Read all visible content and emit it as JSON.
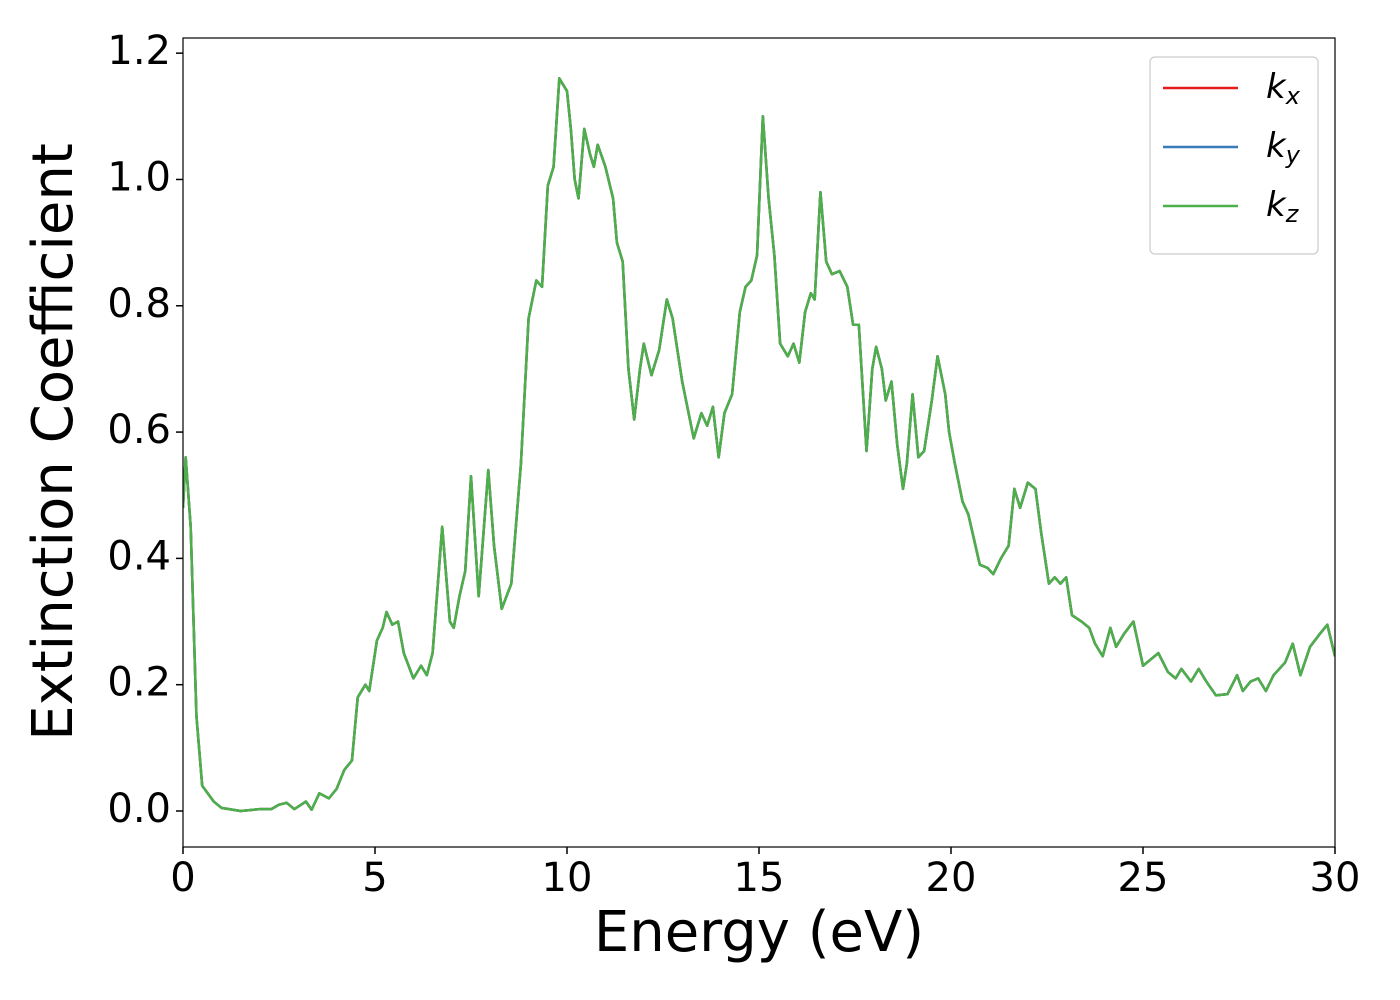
{
  "chart_data": {
    "type": "line",
    "xlabel": "Energy (eV)",
    "ylabel": "Extinction Coefficient",
    "xlim": [
      0,
      30
    ],
    "ylim": [
      -0.057,
      1.224
    ],
    "xticks": [
      0,
      5,
      10,
      15,
      20,
      25,
      30
    ],
    "yticks": [
      {
        "value": 0,
        "label": "0.0"
      },
      0.2,
      0.4,
      0.6,
      0.8,
      {
        "value": 1,
        "label": "1.0"
      },
      1.2
    ],
    "grid": false,
    "legend": "upper right",
    "x": [
      0,
      0.07,
      0.2,
      0.35,
      0.5,
      0.8,
      1,
      1.5,
      2,
      2.3,
      2.5,
      2.7,
      2.9,
      3.2,
      3.35,
      3.55,
      3.8,
      4,
      4.2,
      4.4,
      4.55,
      4.75,
      4.85,
      5.05,
      5.2,
      5.3,
      5.45,
      5.6,
      5.75,
      6,
      6.2,
      6.35,
      6.5,
      6.75,
      6.95,
      7.05,
      7.2,
      7.35,
      7.5,
      7.7,
      7.95,
      8.1,
      8.3,
      8.55,
      8.8,
      9,
      9.2,
      9.35,
      9.5,
      9.65,
      9.8,
      10,
      10.1,
      10.2,
      10.3,
      10.45,
      10.6,
      10.7,
      10.8,
      11,
      11.2,
      11.3,
      11.45,
      11.6,
      11.75,
      11.9,
      12,
      12.2,
      12.4,
      12.6,
      12.75,
      13,
      13.2,
      13.3,
      13.5,
      13.65,
      13.8,
      13.95,
      14.1,
      14.3,
      14.5,
      14.65,
      14.8,
      14.95,
      15.1,
      15.25,
      15.4,
      15.55,
      15.75,
      15.9,
      16.05,
      16.2,
      16.35,
      16.45,
      16.6,
      16.75,
      16.9,
      17.1,
      17.3,
      17.45,
      17.6,
      17.8,
      17.95,
      18.05,
      18.2,
      18.3,
      18.45,
      18.6,
      18.75,
      18.85,
      19,
      19.15,
      19.3,
      19.5,
      19.65,
      19.85,
      19.95,
      20.1,
      20.3,
      20.45,
      20.6,
      20.75,
      20.95,
      21.1,
      21.3,
      21.5,
      21.65,
      21.8,
      22,
      22.2,
      22.35,
      22.55,
      22.7,
      22.85,
      23,
      23.15,
      23.4,
      23.6,
      23.75,
      23.95,
      24.15,
      24.3,
      24.5,
      24.75,
      25,
      25.2,
      25.4,
      25.65,
      25.85,
      26,
      26.25,
      26.45,
      26.65,
      26.9,
      27.2,
      27.45,
      27.6,
      27.8,
      28,
      28.2,
      28.4,
      28.7,
      28.9,
      29.1,
      29.35,
      29.6,
      29.8,
      30
    ],
    "series": [
      {
        "name": "kx",
        "color": "#e41a1c",
        "values": [
          0.48,
          0.56,
          0.45,
          0.15,
          0.04,
          0.015,
          0.005,
          0,
          0.003,
          0.003,
          0.01,
          0.013,
          0.003,
          0.015,
          0.002,
          0.028,
          0.02,
          0.035,
          0.065,
          0.08,
          0.18,
          0.2,
          0.19,
          0.27,
          0.29,
          0.315,
          0.295,
          0.3,
          0.25,
          0.21,
          0.23,
          0.215,
          0.25,
          0.45,
          0.3,
          0.29,
          0.34,
          0.38,
          0.53,
          0.34,
          0.54,
          0.42,
          0.32,
          0.36,
          0.55,
          0.78,
          0.84,
          0.83,
          0.99,
          1.02,
          1.16,
          1.14,
          1.08,
          1,
          0.97,
          1.08,
          1.04,
          1.02,
          1.055,
          1.02,
          0.97,
          0.9,
          0.87,
          0.7,
          0.62,
          0.7,
          0.74,
          0.69,
          0.73,
          0.81,
          0.78,
          0.68,
          0.62,
          0.59,
          0.63,
          0.61,
          0.64,
          0.56,
          0.63,
          0.66,
          0.79,
          0.83,
          0.84,
          0.88,
          1.1,
          0.97,
          0.88,
          0.74,
          0.72,
          0.74,
          0.71,
          0.79,
          0.82,
          0.81,
          0.98,
          0.87,
          0.85,
          0.855,
          0.83,
          0.77,
          0.77,
          0.57,
          0.7,
          0.735,
          0.7,
          0.65,
          0.68,
          0.58,
          0.51,
          0.55,
          0.66,
          0.56,
          0.57,
          0.65,
          0.72,
          0.66,
          0.6,
          0.55,
          0.49,
          0.47,
          0.43,
          0.39,
          0.385,
          0.375,
          0.4,
          0.42,
          0.51,
          0.48,
          0.52,
          0.51,
          0.44,
          0.36,
          0.37,
          0.36,
          0.37,
          0.31,
          0.3,
          0.29,
          0.265,
          0.245,
          0.29,
          0.26,
          0.28,
          0.3,
          0.23,
          0.24,
          0.25,
          0.22,
          0.21,
          0.225,
          0.205,
          0.225,
          0.205,
          0.183,
          0.185,
          0.215,
          0.19,
          0.205,
          0.21,
          0.19,
          0.215,
          0.235,
          0.265,
          0.215,
          0.26,
          0.28,
          0.295,
          0.245
        ]
      },
      {
        "name": "ky",
        "color": "#377eb8",
        "values": [
          0.48,
          0.56,
          0.45,
          0.15,
          0.04,
          0.015,
          0.005,
          0,
          0.003,
          0.003,
          0.01,
          0.013,
          0.003,
          0.015,
          0.002,
          0.028,
          0.02,
          0.035,
          0.065,
          0.08,
          0.18,
          0.2,
          0.19,
          0.27,
          0.29,
          0.315,
          0.295,
          0.3,
          0.25,
          0.21,
          0.23,
          0.215,
          0.25,
          0.45,
          0.3,
          0.29,
          0.34,
          0.38,
          0.53,
          0.34,
          0.54,
          0.42,
          0.32,
          0.36,
          0.55,
          0.78,
          0.84,
          0.83,
          0.99,
          1.02,
          1.16,
          1.14,
          1.08,
          1,
          0.97,
          1.08,
          1.04,
          1.02,
          1.055,
          1.02,
          0.97,
          0.9,
          0.87,
          0.7,
          0.62,
          0.7,
          0.74,
          0.69,
          0.73,
          0.81,
          0.78,
          0.68,
          0.62,
          0.59,
          0.63,
          0.61,
          0.64,
          0.56,
          0.63,
          0.66,
          0.79,
          0.83,
          0.84,
          0.88,
          1.1,
          0.97,
          0.88,
          0.74,
          0.72,
          0.74,
          0.71,
          0.79,
          0.82,
          0.81,
          0.98,
          0.87,
          0.85,
          0.855,
          0.83,
          0.77,
          0.77,
          0.57,
          0.7,
          0.735,
          0.7,
          0.65,
          0.68,
          0.58,
          0.51,
          0.55,
          0.66,
          0.56,
          0.57,
          0.65,
          0.72,
          0.66,
          0.6,
          0.55,
          0.49,
          0.47,
          0.43,
          0.39,
          0.385,
          0.375,
          0.4,
          0.42,
          0.51,
          0.48,
          0.52,
          0.51,
          0.44,
          0.36,
          0.37,
          0.36,
          0.37,
          0.31,
          0.3,
          0.29,
          0.265,
          0.245,
          0.29,
          0.26,
          0.28,
          0.3,
          0.23,
          0.24,
          0.25,
          0.22,
          0.21,
          0.225,
          0.205,
          0.225,
          0.205,
          0.183,
          0.185,
          0.215,
          0.19,
          0.205,
          0.21,
          0.19,
          0.215,
          0.235,
          0.265,
          0.215,
          0.26,
          0.28,
          0.295,
          0.245
        ]
      },
      {
        "name": "kz",
        "color": "#4daf4a",
        "values": [
          0.48,
          0.56,
          0.45,
          0.15,
          0.04,
          0.015,
          0.005,
          0,
          0.003,
          0.003,
          0.01,
          0.013,
          0.003,
          0.015,
          0.002,
          0.028,
          0.02,
          0.035,
          0.065,
          0.08,
          0.18,
          0.2,
          0.19,
          0.27,
          0.29,
          0.315,
          0.295,
          0.3,
          0.25,
          0.21,
          0.23,
          0.215,
          0.25,
          0.45,
          0.3,
          0.29,
          0.34,
          0.38,
          0.53,
          0.34,
          0.54,
          0.42,
          0.32,
          0.36,
          0.55,
          0.78,
          0.84,
          0.83,
          0.99,
          1.02,
          1.16,
          1.14,
          1.08,
          1,
          0.97,
          1.08,
          1.04,
          1.02,
          1.055,
          1.02,
          0.97,
          0.9,
          0.87,
          0.7,
          0.62,
          0.7,
          0.74,
          0.69,
          0.73,
          0.81,
          0.78,
          0.68,
          0.62,
          0.59,
          0.63,
          0.61,
          0.64,
          0.56,
          0.63,
          0.66,
          0.79,
          0.83,
          0.84,
          0.88,
          1.1,
          0.97,
          0.88,
          0.74,
          0.72,
          0.74,
          0.71,
          0.79,
          0.82,
          0.81,
          0.98,
          0.87,
          0.85,
          0.855,
          0.83,
          0.77,
          0.77,
          0.57,
          0.7,
          0.735,
          0.7,
          0.65,
          0.68,
          0.58,
          0.51,
          0.55,
          0.66,
          0.56,
          0.57,
          0.65,
          0.72,
          0.66,
          0.6,
          0.55,
          0.49,
          0.47,
          0.43,
          0.39,
          0.385,
          0.375,
          0.4,
          0.42,
          0.51,
          0.48,
          0.52,
          0.51,
          0.44,
          0.36,
          0.37,
          0.36,
          0.37,
          0.31,
          0.3,
          0.29,
          0.265,
          0.245,
          0.29,
          0.26,
          0.28,
          0.3,
          0.23,
          0.24,
          0.25,
          0.22,
          0.21,
          0.225,
          0.205,
          0.225,
          0.205,
          0.183,
          0.185,
          0.215,
          0.19,
          0.205,
          0.21,
          0.19,
          0.215,
          0.235,
          0.265,
          0.215,
          0.26,
          0.28,
          0.295,
          0.245
        ]
      }
    ]
  }
}
